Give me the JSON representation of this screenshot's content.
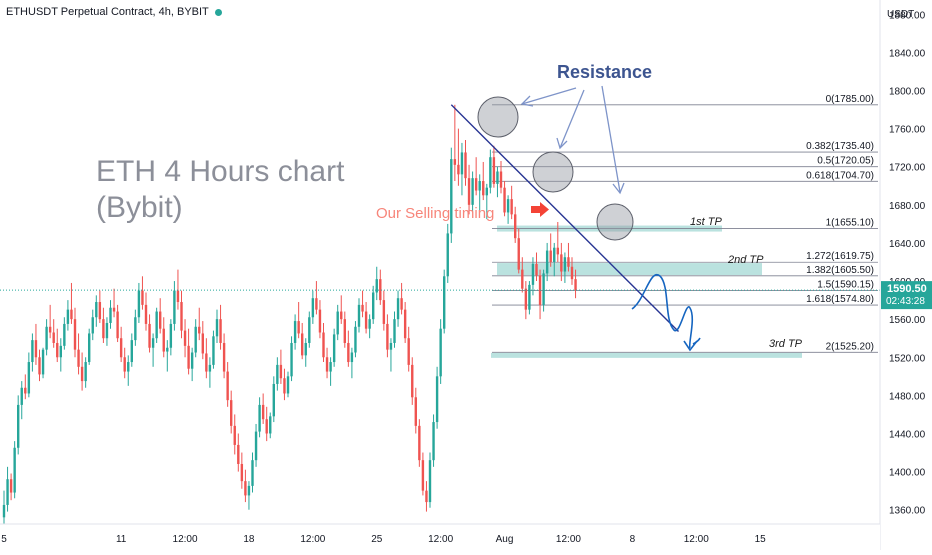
{
  "header": {
    "symbol_title": "ETHUSDT Perpetual Contract, 4h, BYBIT",
    "status_color": "#26a69a"
  },
  "colors": {
    "up": "#26a69a",
    "down": "#ef5350",
    "fib_line": "#7e8190",
    "trendline": "#283593",
    "resistance_circle": "#b2b5be",
    "tp_band": "#b2dfdb",
    "price_label_bg": "#26a69a"
  },
  "annotations": {
    "main_title_line1": "ETH 4 Hours chart",
    "main_title_line2": "(Bybit)",
    "resistance": "Resistance",
    "selling_timing": "Our Selling timing",
    "tp1": "1st TP",
    "tp2": "2nd TP",
    "tp3": "3rd TP"
  },
  "price_axis": {
    "unit_label": "USDT",
    "current_price": "1590.50",
    "countdown": "02:43:28"
  },
  "chart_data": {
    "type": "candlestick",
    "title": "",
    "y_range": [
      1345,
      1895
    ],
    "y_ticks": [
      1360,
      1400,
      1440,
      1480,
      1520,
      1560,
      1600,
      1640,
      1680,
      1720,
      1760,
      1800,
      1840,
      1880
    ],
    "y_tick_labels": [
      "1360.00",
      "1400.00",
      "1440.00",
      "1480.00",
      "1520.00",
      "1560.00",
      "1600.00",
      "1640.00",
      "1680.00",
      "1720.00",
      "1760.00",
      "1800.00",
      "1840.00",
      "1880.00"
    ],
    "x_ticks": [
      {
        "label": "5",
        "index": 0
      },
      {
        "label": "11",
        "index": 33
      },
      {
        "label": "12:00",
        "index": 51
      },
      {
        "label": "18",
        "index": 69
      },
      {
        "label": "12:00",
        "index": 87
      },
      {
        "label": "25",
        "index": 105
      },
      {
        "label": "12:00",
        "index": 123
      },
      {
        "label": "Aug",
        "index": 141
      },
      {
        "label": "12:00",
        "index": 159
      },
      {
        "label": "8",
        "index": 177
      },
      {
        "label": "12:00",
        "index": 195
      },
      {
        "label": "15",
        "index": 213
      }
    ],
    "last_price": 1590.5,
    "fibonacci": [
      {
        "ratio": "0",
        "price": 1785.0,
        "label": "0(1785.00)"
      },
      {
        "ratio": "0.382",
        "price": 1735.4,
        "label": "0.382(1735.40)"
      },
      {
        "ratio": "0.5",
        "price": 1720.05,
        "label": "0.5(1720.05)"
      },
      {
        "ratio": "0.618",
        "price": 1704.7,
        "label": "0.618(1704.70)"
      },
      {
        "ratio": "1",
        "price": 1655.1,
        "label": "1(1655.10)"
      },
      {
        "ratio": "1.272",
        "price": 1619.75,
        "label": "1.272(1619.75)"
      },
      {
        "ratio": "1.382",
        "price": 1605.5,
        "label": "1.382(1605.50)"
      },
      {
        "ratio": "1.5",
        "price": 1590.15,
        "label": "1.5(1590.15)"
      },
      {
        "ratio": "1.618",
        "price": 1574.8,
        "label": "1.618(1574.80)"
      },
      {
        "ratio": "2",
        "price": 1525.2,
        "label": "2(1525.20)"
      }
    ],
    "trendline": {
      "from": {
        "index": 126,
        "price": 1785
      },
      "to": {
        "index": 190,
        "price": 1547
      }
    },
    "candles": [
      {
        "o": 1352,
        "h": 1380,
        "l": 1345,
        "c": 1365
      },
      {
        "o": 1365,
        "h": 1405,
        "l": 1358,
        "c": 1392
      },
      {
        "o": 1392,
        "h": 1398,
        "l": 1370,
        "c": 1378
      },
      {
        "o": 1378,
        "h": 1432,
        "l": 1372,
        "c": 1425
      },
      {
        "o": 1425,
        "h": 1480,
        "l": 1418,
        "c": 1470
      },
      {
        "o": 1470,
        "h": 1495,
        "l": 1455,
        "c": 1488
      },
      {
        "o": 1488,
        "h": 1502,
        "l": 1476,
        "c": 1482
      },
      {
        "o": 1482,
        "h": 1525,
        "l": 1478,
        "c": 1515
      },
      {
        "o": 1515,
        "h": 1545,
        "l": 1505,
        "c": 1538
      },
      {
        "o": 1538,
        "h": 1555,
        "l": 1512,
        "c": 1520
      },
      {
        "o": 1520,
        "h": 1528,
        "l": 1495,
        "c": 1502
      },
      {
        "o": 1502,
        "h": 1530,
        "l": 1498,
        "c": 1528
      },
      {
        "o": 1528,
        "h": 1560,
        "l": 1522,
        "c": 1552
      },
      {
        "o": 1552,
        "h": 1575,
        "l": 1540,
        "c": 1546
      },
      {
        "o": 1546,
        "h": 1560,
        "l": 1530,
        "c": 1535
      },
      {
        "o": 1535,
        "h": 1550,
        "l": 1515,
        "c": 1520
      },
      {
        "o": 1520,
        "h": 1540,
        "l": 1505,
        "c": 1532
      },
      {
        "o": 1532,
        "h": 1562,
        "l": 1528,
        "c": 1555
      },
      {
        "o": 1555,
        "h": 1580,
        "l": 1548,
        "c": 1570
      },
      {
        "o": 1570,
        "h": 1598,
        "l": 1555,
        "c": 1560
      },
      {
        "o": 1560,
        "h": 1572,
        "l": 1520,
        "c": 1528
      },
      {
        "o": 1528,
        "h": 1545,
        "l": 1502,
        "c": 1510
      },
      {
        "o": 1510,
        "h": 1525,
        "l": 1485,
        "c": 1495
      },
      {
        "o": 1495,
        "h": 1520,
        "l": 1488,
        "c": 1515
      },
      {
        "o": 1515,
        "h": 1550,
        "l": 1512,
        "c": 1545
      },
      {
        "o": 1545,
        "h": 1570,
        "l": 1538,
        "c": 1562
      },
      {
        "o": 1562,
        "h": 1585,
        "l": 1552,
        "c": 1578
      },
      {
        "o": 1578,
        "h": 1590,
        "l": 1556,
        "c": 1560
      },
      {
        "o": 1560,
        "h": 1572,
        "l": 1535,
        "c": 1540
      },
      {
        "o": 1540,
        "h": 1562,
        "l": 1532,
        "c": 1556
      },
      {
        "o": 1556,
        "h": 1580,
        "l": 1550,
        "c": 1572
      },
      {
        "o": 1572,
        "h": 1592,
        "l": 1562,
        "c": 1568
      },
      {
        "o": 1568,
        "h": 1575,
        "l": 1536,
        "c": 1540
      },
      {
        "o": 1540,
        "h": 1552,
        "l": 1515,
        "c": 1520
      },
      {
        "o": 1520,
        "h": 1530,
        "l": 1498,
        "c": 1505
      },
      {
        "o": 1505,
        "h": 1522,
        "l": 1490,
        "c": 1515
      },
      {
        "o": 1515,
        "h": 1545,
        "l": 1510,
        "c": 1538
      },
      {
        "o": 1538,
        "h": 1570,
        "l": 1532,
        "c": 1562
      },
      {
        "o": 1562,
        "h": 1598,
        "l": 1556,
        "c": 1590
      },
      {
        "o": 1590,
        "h": 1605,
        "l": 1570,
        "c": 1575
      },
      {
        "o": 1575,
        "h": 1588,
        "l": 1548,
        "c": 1555
      },
      {
        "o": 1555,
        "h": 1565,
        "l": 1525,
        "c": 1530
      },
      {
        "o": 1530,
        "h": 1545,
        "l": 1510,
        "c": 1540
      },
      {
        "o": 1540,
        "h": 1572,
        "l": 1535,
        "c": 1568
      },
      {
        "o": 1568,
        "h": 1582,
        "l": 1545,
        "c": 1550
      },
      {
        "o": 1550,
        "h": 1562,
        "l": 1520,
        "c": 1526
      },
      {
        "o": 1526,
        "h": 1538,
        "l": 1505,
        "c": 1530
      },
      {
        "o": 1530,
        "h": 1560,
        "l": 1522,
        "c": 1555
      },
      {
        "o": 1555,
        "h": 1600,
        "l": 1548,
        "c": 1590
      },
      {
        "o": 1590,
        "h": 1612,
        "l": 1570,
        "c": 1578
      },
      {
        "o": 1578,
        "h": 1590,
        "l": 1540,
        "c": 1548
      },
      {
        "o": 1548,
        "h": 1560,
        "l": 1520,
        "c": 1532
      },
      {
        "o": 1532,
        "h": 1550,
        "l": 1502,
        "c": 1508
      },
      {
        "o": 1508,
        "h": 1530,
        "l": 1495,
        "c": 1525
      },
      {
        "o": 1525,
        "h": 1560,
        "l": 1520,
        "c": 1552
      },
      {
        "o": 1552,
        "h": 1572,
        "l": 1538,
        "c": 1545
      },
      {
        "o": 1545,
        "h": 1558,
        "l": 1518,
        "c": 1524
      },
      {
        "o": 1524,
        "h": 1540,
        "l": 1498,
        "c": 1505
      },
      {
        "o": 1505,
        "h": 1520,
        "l": 1488,
        "c": 1512
      },
      {
        "o": 1512,
        "h": 1548,
        "l": 1508,
        "c": 1542
      },
      {
        "o": 1542,
        "h": 1570,
        "l": 1535,
        "c": 1560
      },
      {
        "o": 1560,
        "h": 1575,
        "l": 1528,
        "c": 1535
      },
      {
        "o": 1535,
        "h": 1545,
        "l": 1498,
        "c": 1505
      },
      {
        "o": 1505,
        "h": 1515,
        "l": 1468,
        "c": 1475
      },
      {
        "o": 1475,
        "h": 1485,
        "l": 1440,
        "c": 1448
      },
      {
        "o": 1448,
        "h": 1460,
        "l": 1418,
        "c": 1428
      },
      {
        "o": 1428,
        "h": 1440,
        "l": 1400,
        "c": 1408
      },
      {
        "o": 1408,
        "h": 1420,
        "l": 1382,
        "c": 1390
      },
      {
        "o": 1390,
        "h": 1402,
        "l": 1368,
        "c": 1375
      },
      {
        "o": 1375,
        "h": 1390,
        "l": 1360,
        "c": 1385
      },
      {
        "o": 1385,
        "h": 1420,
        "l": 1378,
        "c": 1412
      },
      {
        "o": 1412,
        "h": 1450,
        "l": 1405,
        "c": 1442
      },
      {
        "o": 1442,
        "h": 1478,
        "l": 1436,
        "c": 1470
      },
      {
        "o": 1470,
        "h": 1482,
        "l": 1450,
        "c": 1455
      },
      {
        "o": 1455,
        "h": 1468,
        "l": 1432,
        "c": 1440
      },
      {
        "o": 1440,
        "h": 1462,
        "l": 1435,
        "c": 1458
      },
      {
        "o": 1458,
        "h": 1500,
        "l": 1452,
        "c": 1492
      },
      {
        "o": 1492,
        "h": 1520,
        "l": 1485,
        "c": 1512
      },
      {
        "o": 1512,
        "h": 1528,
        "l": 1492,
        "c": 1498
      },
      {
        "o": 1498,
        "h": 1508,
        "l": 1475,
        "c": 1482
      },
      {
        "o": 1482,
        "h": 1505,
        "l": 1478,
        "c": 1500
      },
      {
        "o": 1500,
        "h": 1542,
        "l": 1495,
        "c": 1535
      },
      {
        "o": 1535,
        "h": 1565,
        "l": 1528,
        "c": 1558
      },
      {
        "o": 1558,
        "h": 1578,
        "l": 1540,
        "c": 1545
      },
      {
        "o": 1545,
        "h": 1556,
        "l": 1518,
        "c": 1522
      },
      {
        "o": 1522,
        "h": 1540,
        "l": 1510,
        "c": 1535
      },
      {
        "o": 1535,
        "h": 1568,
        "l": 1530,
        "c": 1562
      },
      {
        "o": 1562,
        "h": 1590,
        "l": 1555,
        "c": 1582
      },
      {
        "o": 1582,
        "h": 1600,
        "l": 1565,
        "c": 1570
      },
      {
        "o": 1570,
        "h": 1580,
        "l": 1540,
        "c": 1546
      },
      {
        "o": 1546,
        "h": 1556,
        "l": 1515,
        "c": 1520
      },
      {
        "o": 1520,
        "h": 1530,
        "l": 1498,
        "c": 1505
      },
      {
        "o": 1505,
        "h": 1520,
        "l": 1490,
        "c": 1515
      },
      {
        "o": 1515,
        "h": 1550,
        "l": 1510,
        "c": 1544
      },
      {
        "o": 1544,
        "h": 1575,
        "l": 1538,
        "c": 1568
      },
      {
        "o": 1568,
        "h": 1585,
        "l": 1555,
        "c": 1560
      },
      {
        "o": 1560,
        "h": 1568,
        "l": 1530,
        "c": 1535
      },
      {
        "o": 1535,
        "h": 1548,
        "l": 1510,
        "c": 1515
      },
      {
        "o": 1515,
        "h": 1530,
        "l": 1498,
        "c": 1525
      },
      {
        "o": 1525,
        "h": 1558,
        "l": 1520,
        "c": 1552
      },
      {
        "o": 1552,
        "h": 1582,
        "l": 1546,
        "c": 1575
      },
      {
        "o": 1575,
        "h": 1590,
        "l": 1562,
        "c": 1568
      },
      {
        "o": 1568,
        "h": 1578,
        "l": 1545,
        "c": 1550
      },
      {
        "o": 1550,
        "h": 1565,
        "l": 1540,
        "c": 1560
      },
      {
        "o": 1560,
        "h": 1595,
        "l": 1555,
        "c": 1588
      },
      {
        "o": 1588,
        "h": 1615,
        "l": 1580,
        "c": 1602
      },
      {
        "o": 1602,
        "h": 1612,
        "l": 1575,
        "c": 1580
      },
      {
        "o": 1580,
        "h": 1590,
        "l": 1548,
        "c": 1555
      },
      {
        "o": 1555,
        "h": 1565,
        "l": 1520,
        "c": 1528
      },
      {
        "o": 1528,
        "h": 1540,
        "l": 1505,
        "c": 1535
      },
      {
        "o": 1535,
        "h": 1568,
        "l": 1530,
        "c": 1560
      },
      {
        "o": 1560,
        "h": 1590,
        "l": 1552,
        "c": 1582
      },
      {
        "o": 1582,
        "h": 1598,
        "l": 1565,
        "c": 1570
      },
      {
        "o": 1570,
        "h": 1578,
        "l": 1535,
        "c": 1540
      },
      {
        "o": 1540,
        "h": 1552,
        "l": 1505,
        "c": 1512
      },
      {
        "o": 1512,
        "h": 1520,
        "l": 1470,
        "c": 1478
      },
      {
        "o": 1478,
        "h": 1488,
        "l": 1440,
        "c": 1448
      },
      {
        "o": 1448,
        "h": 1455,
        "l": 1405,
        "c": 1412
      },
      {
        "o": 1412,
        "h": 1420,
        "l": 1375,
        "c": 1380
      },
      {
        "o": 1380,
        "h": 1390,
        "l": 1358,
        "c": 1368
      },
      {
        "o": 1368,
        "h": 1420,
        "l": 1362,
        "c": 1412
      },
      {
        "o": 1412,
        "h": 1460,
        "l": 1405,
        "c": 1452
      },
      {
        "o": 1452,
        "h": 1510,
        "l": 1445,
        "c": 1500
      },
      {
        "o": 1500,
        "h": 1560,
        "l": 1492,
        "c": 1550
      },
      {
        "o": 1550,
        "h": 1612,
        "l": 1545,
        "c": 1605
      },
      {
        "o": 1605,
        "h": 1660,
        "l": 1598,
        "c": 1650
      },
      {
        "o": 1650,
        "h": 1740,
        "l": 1640,
        "c": 1728
      },
      {
        "o": 1728,
        "h": 1785,
        "l": 1705,
        "c": 1722
      },
      {
        "o": 1722,
        "h": 1760,
        "l": 1700,
        "c": 1712
      },
      {
        "o": 1712,
        "h": 1745,
        "l": 1690,
        "c": 1735
      },
      {
        "o": 1735,
        "h": 1748,
        "l": 1700,
        "c": 1708
      },
      {
        "o": 1708,
        "h": 1722,
        "l": 1670,
        "c": 1680
      },
      {
        "o": 1680,
        "h": 1715,
        "l": 1672,
        "c": 1708
      },
      {
        "o": 1708,
        "h": 1730,
        "l": 1690,
        "c": 1695
      },
      {
        "o": 1695,
        "h": 1712,
        "l": 1672,
        "c": 1705
      },
      {
        "o": 1705,
        "h": 1725,
        "l": 1685,
        "c": 1690
      },
      {
        "o": 1690,
        "h": 1702,
        "l": 1665,
        "c": 1698
      },
      {
        "o": 1698,
        "h": 1738,
        "l": 1692,
        "c": 1730
      },
      {
        "o": 1730,
        "h": 1742,
        "l": 1698,
        "c": 1702
      },
      {
        "o": 1702,
        "h": 1720,
        "l": 1688,
        "c": 1715
      },
      {
        "o": 1715,
        "h": 1726,
        "l": 1692,
        "c": 1698
      },
      {
        "o": 1698,
        "h": 1705,
        "l": 1668,
        "c": 1672
      },
      {
        "o": 1672,
        "h": 1690,
        "l": 1660,
        "c": 1686
      },
      {
        "o": 1686,
        "h": 1700,
        "l": 1665,
        "c": 1670
      },
      {
        "o": 1670,
        "h": 1678,
        "l": 1640,
        "c": 1645
      },
      {
        "o": 1645,
        "h": 1655,
        "l": 1608,
        "c": 1612
      },
      {
        "o": 1612,
        "h": 1625,
        "l": 1588,
        "c": 1592
      },
      {
        "o": 1592,
        "h": 1600,
        "l": 1560,
        "c": 1570
      },
      {
        "o": 1570,
        "h": 1600,
        "l": 1565,
        "c": 1596
      },
      {
        "o": 1596,
        "h": 1625,
        "l": 1585,
        "c": 1618
      },
      {
        "o": 1618,
        "h": 1630,
        "l": 1600,
        "c": 1606
      },
      {
        "o": 1606,
        "h": 1612,
        "l": 1560,
        "c": 1575
      },
      {
        "o": 1575,
        "h": 1612,
        "l": 1568,
        "c": 1608
      },
      {
        "o": 1608,
        "h": 1640,
        "l": 1600,
        "c": 1632
      },
      {
        "o": 1632,
        "h": 1650,
        "l": 1615,
        "c": 1620
      },
      {
        "o": 1620,
        "h": 1640,
        "l": 1605,
        "c": 1635
      },
      {
        "o": 1635,
        "h": 1662,
        "l": 1620,
        "c": 1628
      },
      {
        "o": 1628,
        "h": 1640,
        "l": 1600,
        "c": 1610
      },
      {
        "o": 1610,
        "h": 1630,
        "l": 1598,
        "c": 1625
      },
      {
        "o": 1625,
        "h": 1640,
        "l": 1610,
        "c": 1615
      },
      {
        "o": 1615,
        "h": 1625,
        "l": 1596,
        "c": 1602
      },
      {
        "o": 1602,
        "h": 1612,
        "l": 1582,
        "c": 1590.5
      }
    ]
  }
}
